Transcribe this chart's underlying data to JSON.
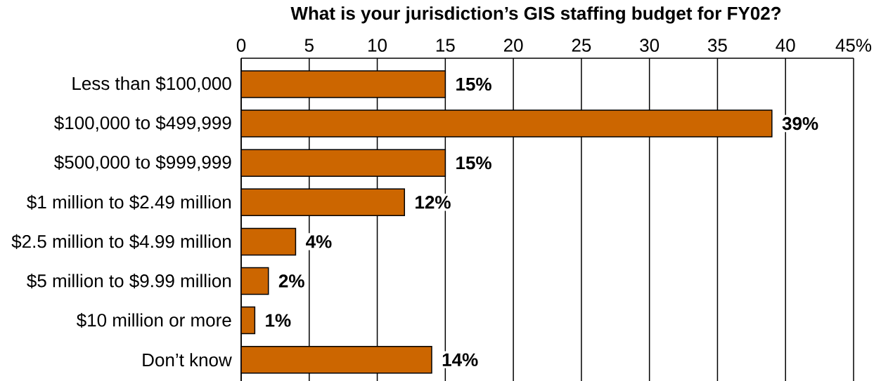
{
  "chart_data": {
    "type": "bar",
    "orientation": "horizontal",
    "title": "What is your jurisdiction’s GIS staffing budget for FY02?",
    "categories": [
      "Less than $100,000",
      "$100,000 to $499,999",
      "$500,000 to $999,999",
      "$1 million to $2.49 million",
      "$2.5 million to $4.99 million",
      "$5 million to $9.99 million",
      "$10 million or more",
      "Don’t know"
    ],
    "values": [
      15,
      39,
      15,
      12,
      4,
      2,
      1,
      14
    ],
    "color": "#cc6600",
    "value_labels": [
      "15%",
      "39%",
      "15%",
      "12%",
      "4%",
      "2%",
      "1%",
      "14%"
    ],
    "xlim": [
      0,
      45
    ],
    "xticks": [
      0,
      5,
      10,
      15,
      20,
      25,
      30,
      35,
      40,
      {
        "value": 45,
        "label": "45%"
      }
    ],
    "grid": "x"
  }
}
